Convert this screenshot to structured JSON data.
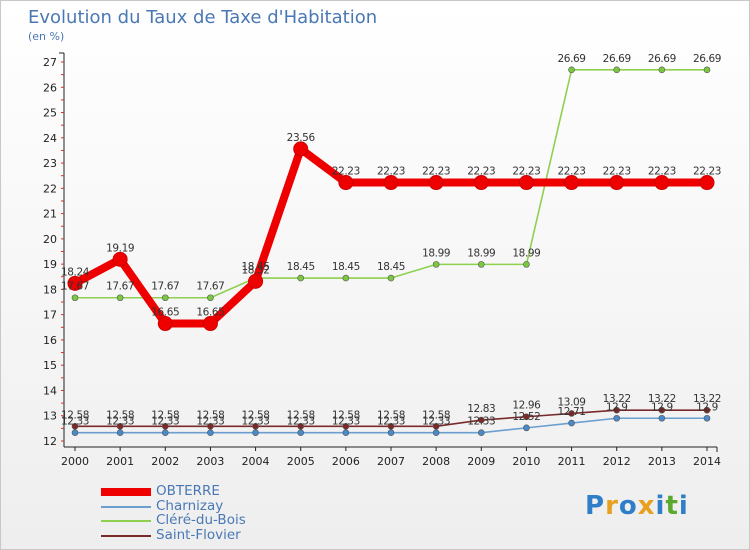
{
  "header": {
    "title": "Evolution du Taux de Taxe d'Habitation",
    "unit": "(en %)"
  },
  "logo": {
    "letters": [
      "P",
      "r",
      "o",
      "x",
      "i",
      "t",
      "i"
    ],
    "colors": [
      "#2f7fc8",
      "#e8a020",
      "#2f7fc8",
      "#e8a020",
      "#2f7fc8",
      "#5aaa30",
      "#2f7fc8"
    ]
  },
  "chart_data": {
    "type": "line",
    "title": "Evolution du Taux de Taxe d'Habitation",
    "ylabel": "(en %)",
    "x": [
      "2000",
      "2001",
      "2002",
      "2003",
      "2004",
      "2005",
      "2006",
      "2007",
      "2008",
      "2009",
      "2010",
      "2011",
      "2012",
      "2013",
      "2014"
    ],
    "ylim": [
      12,
      27
    ],
    "yticks": [
      "12",
      "13",
      "14",
      "15",
      "16",
      "17",
      "18",
      "19",
      "20",
      "21",
      "22",
      "23",
      "24",
      "25",
      "26",
      "27"
    ],
    "grid": false,
    "legend_position": "bottom-left",
    "series": [
      {
        "name": "OBTERRE",
        "color": "#ee0000",
        "values": [
          18.24,
          19.19,
          16.65,
          16.65,
          18.32,
          23.56,
          22.23,
          22.23,
          22.23,
          22.23,
          22.23,
          22.23,
          22.23,
          22.23,
          22.23
        ],
        "labels": [
          "18.24",
          "19.19",
          "16.65",
          "16.65",
          "18.32",
          "23.56",
          "22.23",
          "22.23",
          "22.23",
          "22.23",
          "22.23",
          "22.23",
          "22.23",
          "22.23",
          "22.23"
        ]
      },
      {
        "name": "Charnizay",
        "color": "#6a9fd0",
        "values": [
          12.33,
          12.33,
          12.33,
          12.33,
          12.33,
          12.33,
          12.33,
          12.33,
          12.33,
          12.33,
          12.52,
          12.71,
          12.9,
          12.9,
          12.9
        ],
        "labels": [
          "12.33",
          "12.33",
          "12.33",
          "12.33",
          "12.33",
          "12.33",
          "12.33",
          "12.33",
          "12.33",
          "12.33",
          "12.52",
          "12.71",
          "12.9",
          "12.9",
          "12.9"
        ]
      },
      {
        "name": "Cléré-du-Bois",
        "color": "#8ed050",
        "values": [
          17.67,
          17.67,
          17.67,
          17.67,
          18.45,
          18.45,
          18.45,
          18.45,
          18.99,
          18.99,
          18.99,
          26.69,
          26.69,
          26.69,
          26.69
        ],
        "labels": [
          "17.67",
          "17.67",
          "17.67",
          "17.67",
          "18.45",
          "18.45",
          "18.45",
          "18.45",
          "18.99",
          "18.99",
          "18.99",
          "26.69",
          "26.69",
          "26.69",
          "26.69"
        ]
      },
      {
        "name": "Saint-Flovier",
        "color": "#7a2a2a",
        "values": [
          12.58,
          12.58,
          12.58,
          12.58,
          12.58,
          12.58,
          12.58,
          12.58,
          12.58,
          12.83,
          12.96,
          13.09,
          13.22,
          13.22,
          13.22
        ],
        "labels": [
          "12.58",
          "12.58",
          "12.58",
          "12.58",
          "12.58",
          "12.58",
          "12.58",
          "12.58",
          "12.58",
          "12.83",
          "12.96",
          "13.09",
          "13.22",
          "13.22",
          "13.22"
        ]
      }
    ]
  }
}
